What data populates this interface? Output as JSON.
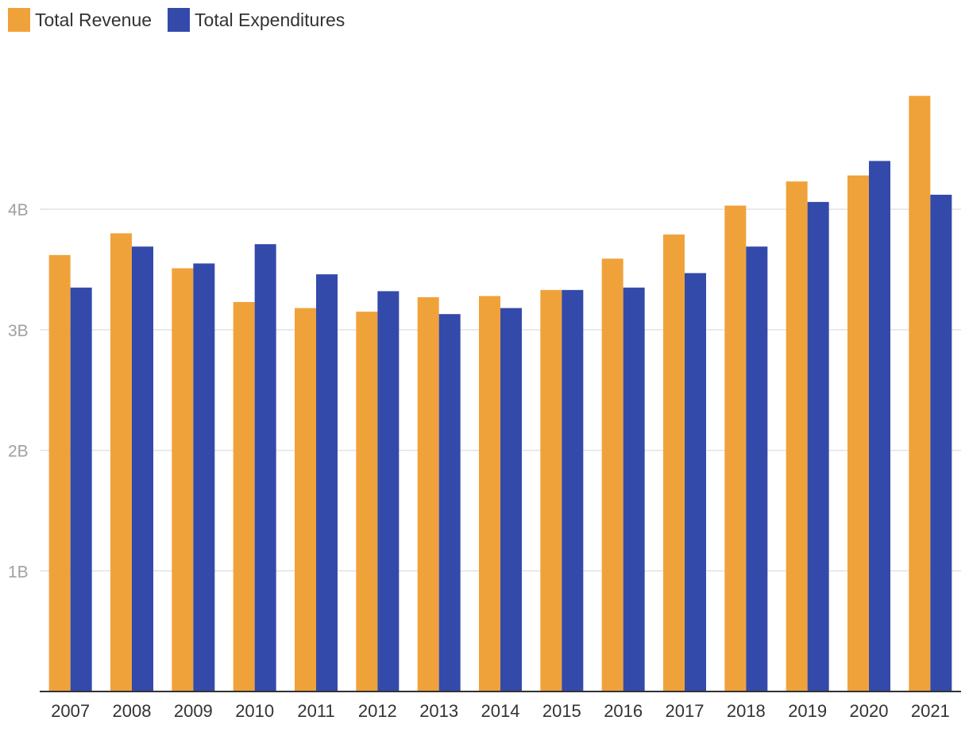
{
  "chart_data": {
    "type": "bar",
    "title": "",
    "xlabel": "",
    "ylabel": "",
    "ylim": [
      0,
      5.3
    ],
    "y_ticks": [
      {
        "value": 1,
        "label": "1B"
      },
      {
        "value": 2,
        "label": "2B"
      },
      {
        "value": 3,
        "label": "3B"
      },
      {
        "value": 4,
        "label": "4B"
      }
    ],
    "grid": true,
    "legend_position": "top-left",
    "categories": [
      "2007",
      "2008",
      "2009",
      "2010",
      "2011",
      "2012",
      "2013",
      "2014",
      "2015",
      "2016",
      "2017",
      "2018",
      "2019",
      "2020",
      "2021"
    ],
    "series": [
      {
        "name": "Total Revenue",
        "color": "#f0a23a",
        "values": [
          3.62,
          3.8,
          3.51,
          3.23,
          3.18,
          3.15,
          3.27,
          3.28,
          3.33,
          3.59,
          3.79,
          4.03,
          4.23,
          4.28,
          4.94
        ]
      },
      {
        "name": "Total Expenditures",
        "color": "#344aaa",
        "values": [
          3.35,
          3.69,
          3.55,
          3.71,
          3.46,
          3.32,
          3.13,
          3.18,
          3.33,
          3.35,
          3.47,
          3.69,
          4.06,
          4.4,
          4.12
        ]
      }
    ]
  }
}
